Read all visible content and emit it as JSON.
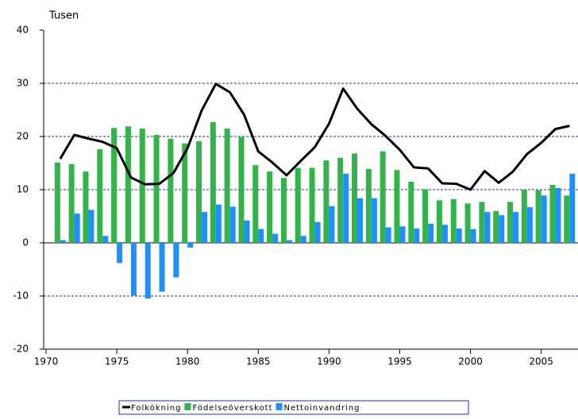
{
  "chart_data": {
    "type": "bar",
    "y_label": "Tusen",
    "x": [
      1971,
      1972,
      1973,
      1974,
      1975,
      1976,
      1977,
      1978,
      1979,
      1980,
      1981,
      1982,
      1983,
      1984,
      1985,
      1986,
      1987,
      1988,
      1989,
      1990,
      1991,
      1992,
      1993,
      1994,
      1995,
      1996,
      1997,
      1998,
      1999,
      2000,
      2001,
      2002,
      2003,
      2004,
      2005,
      2006,
      2007
    ],
    "series": [
      {
        "name": "Folkökning",
        "type": "line",
        "color": "#000000",
        "values": [
          15.8,
          20.3,
          19.6,
          19.0,
          17.8,
          12.3,
          11.0,
          11.1,
          13.1,
          17.8,
          24.9,
          29.9,
          28.3,
          24.1,
          17.2,
          15.1,
          12.7,
          15.4,
          18.0,
          22.4,
          29.0,
          25.2,
          22.3,
          20.1,
          17.5,
          14.2,
          14.0,
          11.2,
          11.1,
          10.0,
          13.5,
          11.3,
          13.4,
          16.7,
          18.8,
          21.4,
          22.0
        ]
      },
      {
        "name": "Födelseöverskott",
        "type": "bar",
        "color": "#33b34a",
        "values": [
          15.1,
          14.8,
          13.4,
          17.6,
          21.6,
          21.9,
          21.5,
          20.3,
          19.6,
          18.7,
          19.1,
          22.7,
          21.5,
          19.9,
          14.6,
          13.4,
          12.2,
          14.1,
          14.1,
          15.5,
          16.0,
          16.8,
          13.9,
          17.2,
          13.7,
          11.5,
          10.1,
          8.0,
          8.2,
          7.4,
          7.7,
          6.0,
          7.7,
          10.0,
          9.9,
          10.9,
          8.9
        ]
      },
      {
        "name": "Nettoinvandring",
        "type": "bar",
        "color": "#1e8fff",
        "values": [
          0.5,
          5.5,
          6.2,
          1.3,
          -3.8,
          -9.9,
          -10.5,
          -9.2,
          -6.5,
          -0.9,
          5.8,
          7.2,
          6.8,
          4.2,
          2.6,
          1.7,
          0.5,
          1.3,
          3.9,
          6.9,
          13.0,
          8.4,
          8.4,
          2.9,
          3.1,
          2.7,
          3.6,
          3.4,
          2.7,
          2.6,
          5.8,
          5.2,
          5.8,
          6.7,
          8.9,
          10.3,
          13.0
        ]
      }
    ],
    "xlim": [
      1970,
      2007.6
    ],
    "xticks": [
      1970,
      1975,
      1980,
      1985,
      1990,
      1995,
      2000,
      2005
    ],
    "ylim": [
      -20,
      40
    ],
    "yticks": [
      -20,
      -10,
      0,
      10,
      20,
      30,
      40
    ],
    "grid": true,
    "grid_color": "#1f2fa8"
  }
}
